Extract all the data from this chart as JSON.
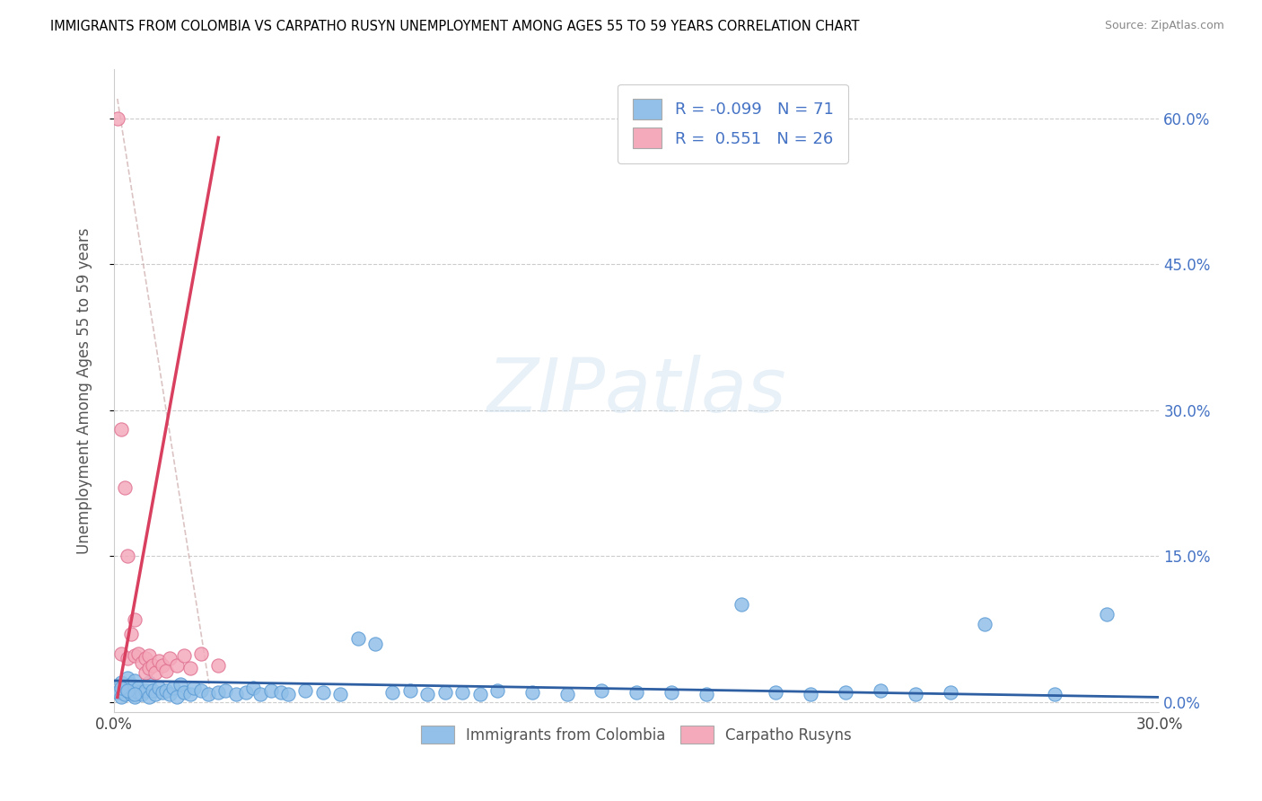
{
  "title": "IMMIGRANTS FROM COLOMBIA VS CARPATHO RUSYN UNEMPLOYMENT AMONG AGES 55 TO 59 YEARS CORRELATION CHART",
  "source": "Source: ZipAtlas.com",
  "ylabel": "Unemployment Among Ages 55 to 59 years",
  "xlim": [
    0.0,
    0.3
  ],
  "ylim": [
    -0.01,
    0.65
  ],
  "xtick_vals": [
    0.0,
    0.3
  ],
  "xtick_labels": [
    "0.0%",
    "30.0%"
  ],
  "ytick_vals": [
    0.0,
    0.15,
    0.3,
    0.45,
    0.6
  ],
  "ytick_labels": [
    "0.0%",
    "15.0%",
    "30.0%",
    "45.0%",
    "60.0%"
  ],
  "blue_color": "#92C0E8",
  "blue_edge_color": "#5B9BD5",
  "pink_color": "#F4AABB",
  "pink_edge_color": "#E07090",
  "blue_line_color": "#2E5FA3",
  "pink_line_color": "#D94060",
  "dashed_line_color": "#CCAAAA",
  "r_blue": -0.099,
  "n_blue": 71,
  "r_pink": 0.551,
  "n_pink": 26,
  "blue_scatter_x": [
    0.001,
    0.002,
    0.002,
    0.003,
    0.003,
    0.004,
    0.004,
    0.005,
    0.005,
    0.006,
    0.006,
    0.007,
    0.007,
    0.008,
    0.009,
    0.01,
    0.01,
    0.011,
    0.012,
    0.013,
    0.014,
    0.015,
    0.016,
    0.017,
    0.018,
    0.019,
    0.02,
    0.022,
    0.023,
    0.025,
    0.027,
    0.03,
    0.032,
    0.035,
    0.038,
    0.04,
    0.042,
    0.045,
    0.048,
    0.05,
    0.055,
    0.06,
    0.065,
    0.07,
    0.075,
    0.08,
    0.085,
    0.09,
    0.095,
    0.1,
    0.105,
    0.11,
    0.12,
    0.13,
    0.14,
    0.15,
    0.16,
    0.17,
    0.18,
    0.19,
    0.2,
    0.21,
    0.22,
    0.23,
    0.24,
    0.25,
    0.27,
    0.285,
    0.002,
    0.004,
    0.006
  ],
  "blue_scatter_y": [
    0.01,
    0.005,
    0.02,
    0.008,
    0.015,
    0.012,
    0.025,
    0.008,
    0.018,
    0.005,
    0.022,
    0.01,
    0.015,
    0.008,
    0.012,
    0.005,
    0.02,
    0.012,
    0.008,
    0.015,
    0.01,
    0.012,
    0.008,
    0.015,
    0.005,
    0.018,
    0.01,
    0.008,
    0.015,
    0.012,
    0.008,
    0.01,
    0.012,
    0.008,
    0.01,
    0.015,
    0.008,
    0.012,
    0.01,
    0.008,
    0.012,
    0.01,
    0.008,
    0.065,
    0.06,
    0.01,
    0.012,
    0.008,
    0.01,
    0.01,
    0.008,
    0.012,
    0.01,
    0.008,
    0.012,
    0.01,
    0.01,
    0.008,
    0.1,
    0.01,
    0.008,
    0.01,
    0.012,
    0.008,
    0.01,
    0.08,
    0.008,
    0.09,
    0.015,
    0.012,
    0.008
  ],
  "pink_scatter_x": [
    0.001,
    0.002,
    0.002,
    0.003,
    0.004,
    0.004,
    0.005,
    0.006,
    0.006,
    0.007,
    0.008,
    0.009,
    0.009,
    0.01,
    0.01,
    0.011,
    0.012,
    0.013,
    0.014,
    0.015,
    0.016,
    0.018,
    0.02,
    0.022,
    0.025,
    0.03
  ],
  "pink_scatter_y": [
    0.6,
    0.28,
    0.05,
    0.22,
    0.15,
    0.045,
    0.07,
    0.048,
    0.085,
    0.05,
    0.04,
    0.045,
    0.03,
    0.048,
    0.035,
    0.038,
    0.03,
    0.042,
    0.038,
    0.032,
    0.045,
    0.038,
    0.048,
    0.035,
    0.05,
    0.038
  ],
  "blue_line_x": [
    0.0,
    0.3
  ],
  "blue_line_y": [
    0.022,
    0.005
  ],
  "pink_line_x": [
    0.001,
    0.03
  ],
  "pink_line_y": [
    0.005,
    0.58
  ],
  "dashed_line_x": [
    0.001,
    0.028
  ],
  "dashed_line_y": [
    0.62,
    0.002
  ]
}
